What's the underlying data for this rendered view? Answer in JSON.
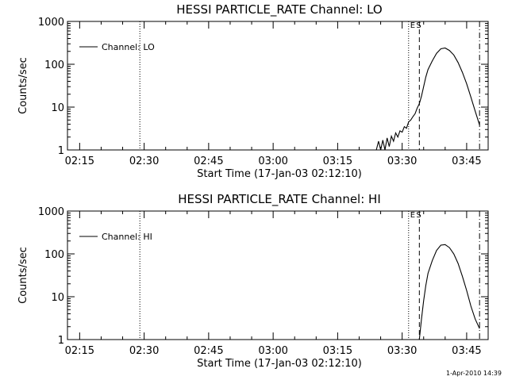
{
  "footer": {
    "timestamp": "1-Apr-2010 14:39"
  },
  "chart_data": [
    {
      "type": "line",
      "title": "HESSI PARTICLE_RATE Channel: LO",
      "xlabel": "Start Time (17-Jan-03 02:12:10)",
      "ylabel": "Counts/sec",
      "x_ticks": [
        "02:15",
        "02:30",
        "02:45",
        "03:00",
        "03:15",
        "03:30",
        "03:45"
      ],
      "y_ticks": [
        "1",
        "10",
        "100",
        "1000"
      ],
      "y_scale": "log",
      "xlim": [
        "02:12:10",
        "03:50:00"
      ],
      "ylim": [
        1,
        1000
      ],
      "legend": {
        "placement": "top-left"
      },
      "markers": [
        {
          "style": "dotted",
          "x": "02:29:00",
          "label": ""
        },
        {
          "style": "dotted",
          "x": "03:31:30",
          "label": "E"
        },
        {
          "style": "dashed",
          "x": "03:34:00",
          "label": "S"
        },
        {
          "style": "dash-dot",
          "x": "03:48:00",
          "label": ""
        }
      ],
      "series": [
        {
          "name": "Channel: LO",
          "x": [
            "03:24:00",
            "03:24:30",
            "03:25:00",
            "03:25:30",
            "03:26:00",
            "03:26:30",
            "03:27:00",
            "03:27:30",
            "03:28:00",
            "03:28:30",
            "03:29:00",
            "03:29:30",
            "03:30:00",
            "03:30:30",
            "03:31:00",
            "03:31:30",
            "03:32:00",
            "03:32:30",
            "03:33:00",
            "03:33:30",
            "03:34:00",
            "03:34:30",
            "03:35:00",
            "03:35:30",
            "03:36:00",
            "03:37:00",
            "03:38:00",
            "03:39:00",
            "03:40:00",
            "03:41:00",
            "03:42:00",
            "03:43:00",
            "03:44:00",
            "03:45:00",
            "03:46:00",
            "03:47:00",
            "03:48:00"
          ],
          "y": [
            1,
            1.6,
            1,
            1.7,
            1,
            1.9,
            1.2,
            2.1,
            1.6,
            2.5,
            2,
            2.8,
            2.6,
            3.5,
            3.2,
            4.5,
            5,
            6,
            7,
            9.5,
            12,
            18,
            30,
            50,
            75,
            120,
            180,
            230,
            240,
            210,
            165,
            110,
            65,
            35,
            17,
            8,
            3.8
          ]
        }
      ]
    },
    {
      "type": "line",
      "title": "HESSI PARTICLE_RATE Channel: HI",
      "xlabel": "Start Time (17-Jan-03 02:12:10)",
      "ylabel": "Counts/sec",
      "x_ticks": [
        "02:15",
        "02:30",
        "02:45",
        "03:00",
        "03:15",
        "03:30",
        "03:45"
      ],
      "y_ticks": [
        "1",
        "10",
        "100",
        "1000"
      ],
      "y_scale": "log",
      "xlim": [
        "02:12:10",
        "03:50:00"
      ],
      "ylim": [
        1,
        1000
      ],
      "legend": {
        "placement": "top-left"
      },
      "markers": [
        {
          "style": "dotted",
          "x": "02:29:00",
          "label": ""
        },
        {
          "style": "dotted",
          "x": "03:31:30",
          "label": "E"
        },
        {
          "style": "dashed",
          "x": "03:34:00",
          "label": "S"
        },
        {
          "style": "dash-dot",
          "x": "03:48:00",
          "label": ""
        }
      ],
      "series": [
        {
          "name": "Channel: HI",
          "x": [
            "03:34:00",
            "03:34:30",
            "03:35:00",
            "03:35:30",
            "03:36:00",
            "03:37:00",
            "03:38:00",
            "03:39:00",
            "03:40:00",
            "03:41:00",
            "03:42:00",
            "03:43:00",
            "03:44:00",
            "03:45:00",
            "03:46:00",
            "03:47:00",
            "03:48:00"
          ],
          "y": [
            1,
            3,
            8,
            18,
            35,
            70,
            120,
            160,
            165,
            140,
            100,
            60,
            30,
            14,
            6,
            3,
            1.8
          ]
        }
      ]
    }
  ]
}
